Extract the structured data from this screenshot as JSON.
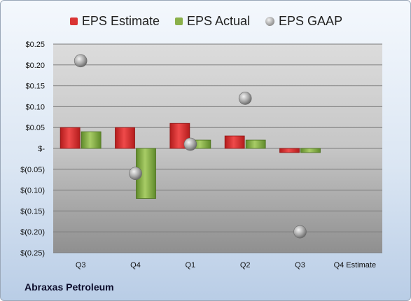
{
  "company": "Abraxas Petroleum",
  "legend": [
    {
      "label": "EPS Estimate",
      "color": "#d93434",
      "kind": "bar"
    },
    {
      "label": "EPS Actual",
      "color": "#8ab04a",
      "kind": "bar"
    },
    {
      "label": "EPS GAAP",
      "color": "#a0a0a0",
      "kind": "dot"
    }
  ],
  "chart_data": {
    "type": "bar",
    "categories": [
      "Q3",
      "Q4",
      "Q1",
      "Q2",
      "Q3",
      "Q4 Estimate"
    ],
    "yticks": [
      "$0.25",
      "$0.20",
      "$0.15",
      "$0.10",
      "$0.05",
      "$-",
      "$(0.05)",
      "$(0.10)",
      "$(0.15)",
      "$(0.20)",
      "$(0.25)"
    ],
    "ylim": [
      -0.25,
      0.25
    ],
    "series": [
      {
        "name": "EPS Estimate",
        "type": "bar",
        "color": "#d93434",
        "values": [
          0.05,
          0.05,
          0.06,
          0.03,
          -0.01,
          null
        ]
      },
      {
        "name": "EPS Actual",
        "type": "bar",
        "color": "#8ab04a",
        "values": [
          0.04,
          -0.12,
          0.02,
          0.02,
          -0.01,
          null
        ]
      },
      {
        "name": "EPS GAAP",
        "type": "scatter",
        "color": "#a0a0a0",
        "values": [
          0.21,
          -0.06,
          0.01,
          0.12,
          -0.2,
          null
        ]
      }
    ],
    "grid": true,
    "legend_position": "top"
  }
}
